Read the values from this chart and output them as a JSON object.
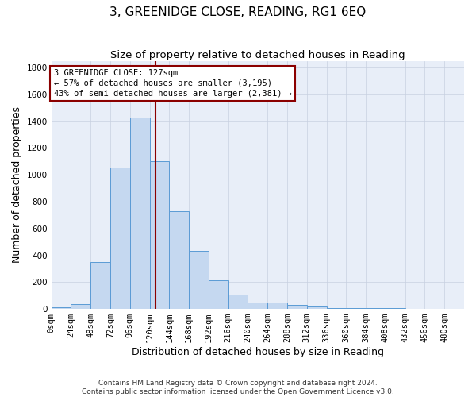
{
  "title": "3, GREENIDGE CLOSE, READING, RG1 6EQ",
  "subtitle": "Size of property relative to detached houses in Reading",
  "xlabel": "Distribution of detached houses by size in Reading",
  "ylabel": "Number of detached properties",
  "footnote1": "Contains HM Land Registry data © Crown copyright and database right 2024.",
  "footnote2": "Contains public sector information licensed under the Open Government Licence v3.0.",
  "bin_labels": [
    "0sqm",
    "24sqm",
    "48sqm",
    "72sqm",
    "96sqm",
    "120sqm",
    "144sqm",
    "168sqm",
    "192sqm",
    "216sqm",
    "240sqm",
    "264sqm",
    "288sqm",
    "312sqm",
    "336sqm",
    "360sqm",
    "384sqm",
    "408sqm",
    "432sqm",
    "456sqm",
    "480sqm"
  ],
  "bar_values": [
    10,
    35,
    350,
    1055,
    1430,
    1100,
    730,
    430,
    215,
    105,
    50,
    45,
    30,
    20,
    5,
    5,
    5,
    5,
    2,
    2,
    2
  ],
  "bar_color": "#c5d8f0",
  "bar_edge_color": "#5b9bd5",
  "bin_width": 24,
  "property_size": 127,
  "property_label": "3 GREENIDGE CLOSE: 127sqm",
  "annotation_line1": "← 57% of detached houses are smaller (3,195)",
  "annotation_line2": "43% of semi-detached houses are larger (2,381) →",
  "vline_color": "#8b0000",
  "ylim": [
    0,
    1850
  ],
  "yticks": [
    0,
    200,
    400,
    600,
    800,
    1000,
    1200,
    1400,
    1600,
    1800
  ],
  "background_color": "#e8eef8",
  "grid_color": "#c8d0e0",
  "title_fontsize": 11,
  "subtitle_fontsize": 9.5,
  "axis_label_fontsize": 9,
  "tick_fontsize": 7.5,
  "footnote_fontsize": 6.5
}
